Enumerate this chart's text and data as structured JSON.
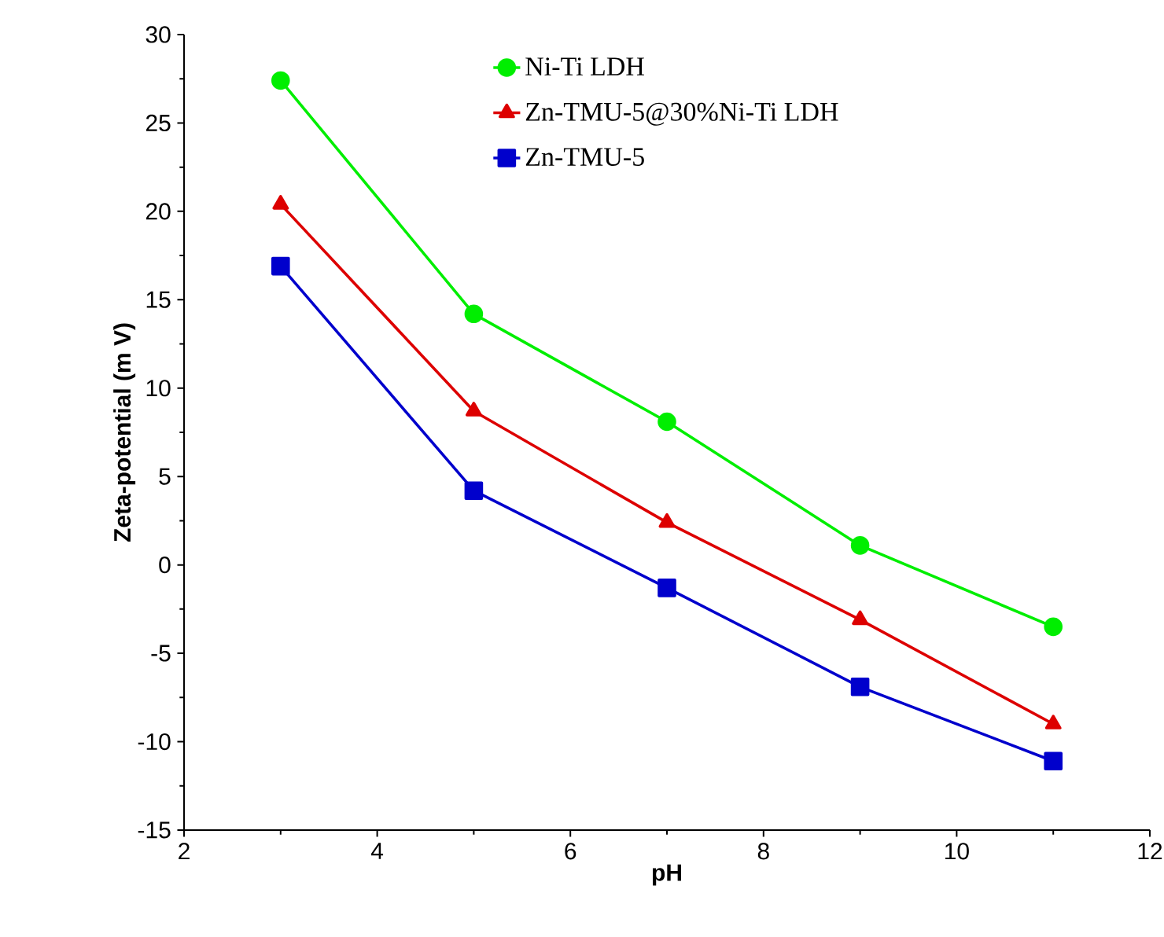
{
  "chart_data": {
    "type": "line",
    "xlabel": "pH",
    "ylabel": "Zeta-potential (m V)",
    "x": [
      3,
      5,
      7,
      9,
      11
    ],
    "series": [
      {
        "name": "Ni-Ti LDH",
        "color": "#00ee00",
        "marker": "circle",
        "values": [
          27.4,
          14.2,
          8.1,
          1.1,
          -3.5
        ]
      },
      {
        "name": "Zn-TMU-5@30%Ni-Ti LDH",
        "color": "#dd0000",
        "marker": "triangle",
        "values": [
          20.4,
          8.7,
          2.4,
          -3.1,
          -9.0
        ]
      },
      {
        "name": "Zn-TMU-5",
        "color": "#0000cc",
        "marker": "square",
        "values": [
          16.9,
          4.2,
          -1.3,
          -6.9,
          -11.1
        ]
      }
    ],
    "xlim": [
      2,
      12
    ],
    "xticks": [
      2,
      4,
      6,
      8,
      10,
      12
    ],
    "ylim": [
      -15,
      30
    ],
    "yticks": [
      -15,
      -10,
      -5,
      0,
      5,
      10,
      15,
      20,
      25,
      30
    ],
    "legend": "top",
    "grid": false,
    "line_style": "solid"
  }
}
